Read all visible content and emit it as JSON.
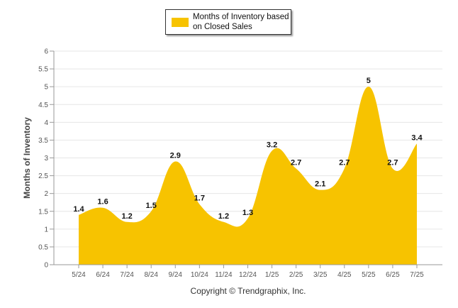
{
  "chart_data": {
    "type": "area",
    "categories": [
      "5/24",
      "6/24",
      "7/24",
      "8/24",
      "9/24",
      "10/24",
      "11/24",
      "12/24",
      "1/25",
      "2/25",
      "3/25",
      "4/25",
      "5/25",
      "6/25",
      "7/25"
    ],
    "series": [
      {
        "name": "Months of Inventory based on Closed Sales",
        "values": [
          1.4,
          1.6,
          1.2,
          1.5,
          2.9,
          1.7,
          1.2,
          1.3,
          3.2,
          2.7,
          2.1,
          2.7,
          5,
          2.7,
          3.4
        ]
      }
    ],
    "ylabel": "Months of Inventory",
    "ylim": [
      0,
      6
    ],
    "yticks": [
      "0",
      "0.5",
      "1",
      "1.5",
      "2",
      "2.5",
      "3",
      "3.5",
      "4",
      "4.5",
      "5",
      "5.5",
      "6"
    ],
    "grid": true,
    "legend_position": "top-center",
    "data_labels": [
      "1.4",
      "1.6",
      "1.2",
      "1.5",
      "2.9",
      "1.7",
      "1.2",
      "1.3",
      "3.2",
      "2.7",
      "2.1",
      "2.7",
      "5",
      "2.7",
      "3.4"
    ]
  },
  "colors": {
    "fill": "#F7C300",
    "grid": "#e6e6e6",
    "axis_text": "#555555"
  },
  "footer": {
    "copyright": "Copyright © Trendgraphix, Inc."
  }
}
